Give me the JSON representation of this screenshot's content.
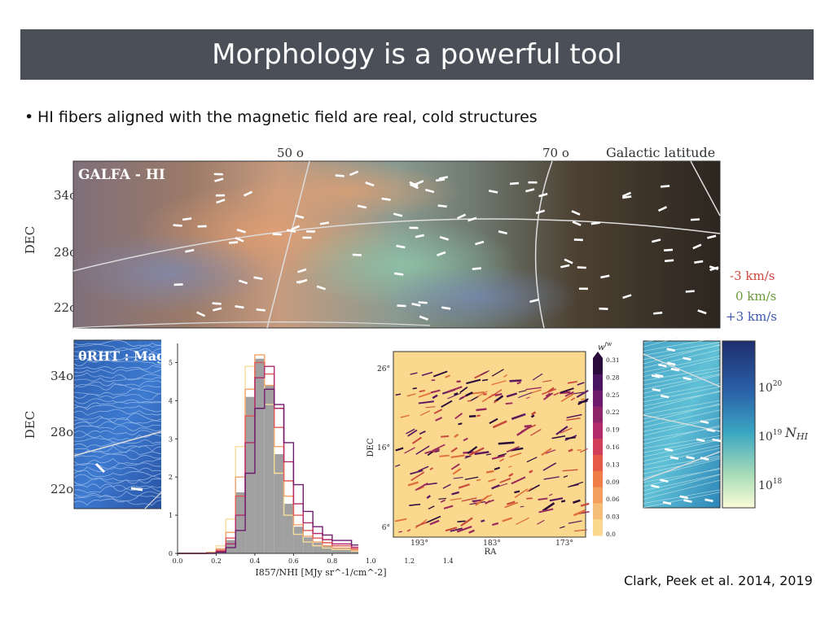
{
  "slide": {
    "title": "Morphology is a powerful tool",
    "bullet": "HI fibers aligned with the magnetic field are real, cold structures",
    "citation": "Clark, Peek et al. 2014, 2019"
  },
  "top_map": {
    "label": "GALFA - HI",
    "gal_lat_label": "Galactic latitude",
    "gal_lat_ticks": [
      "50 o",
      "70 o"
    ],
    "dec_label": "DEC",
    "dec_ticks": [
      "34o",
      "28o",
      "22o"
    ],
    "velocity_legend": [
      {
        "text": "-3 km/s",
        "color": "#d0463c"
      },
      {
        "text": "0 km/s",
        "color": "#6a9a3a"
      },
      {
        "text": "+3 km/s",
        "color": "#3b56b0"
      }
    ]
  },
  "left_map": {
    "label": "θRHT : Magne",
    "dec_label": "DEC",
    "dec_ticks": [
      "34o",
      "28o",
      "22o"
    ]
  },
  "right_map": {
    "colorbar_label": "NHI",
    "colorbar_ticks": [
      "10^20",
      "10^19",
      "10^18"
    ]
  },
  "histogram": {
    "xlabel": "I857/NHI [MJy sr^-1/cm^-2]",
    "xticks": [
      "0.0",
      "0.2",
      "0.4",
      "0.6",
      "0.8",
      "1.0",
      "1.2",
      "1.4"
    ],
    "yticks": [
      "0",
      "1",
      "2",
      "3",
      "4",
      "5"
    ]
  },
  "fiber_map": {
    "xlabel": "RA",
    "ylabel": "DEC",
    "xticks": [
      "193°",
      "183°",
      "173°"
    ],
    "yticks": [
      "26°",
      "16°",
      "6°"
    ],
    "colorbar_label": "w^fw",
    "colorbar_ticks": [
      "0.31",
      "0.28",
      "0.25",
      "0.22",
      "0.19",
      "0.16",
      "0.13",
      "0.09",
      "0.06",
      "0.03",
      "0.0"
    ]
  },
  "chart_data": [
    {
      "type": "histogram",
      "xlabel": "I857/NHI [MJy sr^-1/cm^-2]",
      "xlim": [
        0.0,
        1.5
      ],
      "ylim": [
        0,
        5.5
      ],
      "x": [
        0.0,
        0.05,
        0.1,
        0.15,
        0.2,
        0.25,
        0.3,
        0.35,
        0.4,
        0.45,
        0.5,
        0.55,
        0.6,
        0.65,
        0.7,
        0.75,
        0.8,
        0.9,
        1.0,
        1.1,
        1.2,
        1.3,
        1.4,
        1.5
      ],
      "series": [
        {
          "color": "#a0a0a0",
          "values": [
            0,
            0,
            0,
            0.02,
            0.1,
            0.35,
            1.6,
            4.1,
            5.1,
            4.4,
            2.6,
            1.3,
            0.7,
            0.42,
            0.28,
            0.2,
            0.15,
            0.1,
            0.06,
            0.03,
            0.01,
            0,
            0,
            0
          ]
        },
        {
          "color": "#f5dd9a",
          "values": [
            0,
            0,
            0,
            0.03,
            0.2,
            0.9,
            2.8,
            4.9,
            5.2,
            3.9,
            2.1,
            1.0,
            0.5,
            0.3,
            0.2,
            0.14,
            0.1,
            0.06,
            0.03,
            0.01,
            0,
            0,
            0,
            0
          ]
        },
        {
          "color": "#f2a36b",
          "values": [
            0,
            0,
            0,
            0.02,
            0.12,
            0.55,
            2.0,
            4.3,
            5.2,
            4.4,
            2.8,
            1.5,
            0.75,
            0.45,
            0.3,
            0.2,
            0.14,
            0.08,
            0.04,
            0.02,
            0.01,
            0,
            0,
            0
          ]
        },
        {
          "color": "#e05a55",
          "values": [
            0,
            0,
            0,
            0.01,
            0.08,
            0.4,
            1.5,
            3.6,
            5.0,
            4.7,
            3.3,
            1.9,
            1.0,
            0.6,
            0.4,
            0.28,
            0.2,
            0.12,
            0.06,
            0.03,
            0.01,
            0,
            0,
            0
          ]
        },
        {
          "color": "#b32a6a",
          "values": [
            0,
            0,
            0,
            0.01,
            0.05,
            0.25,
            1.0,
            2.9,
            4.6,
            4.9,
            3.8,
            2.4,
            1.3,
            0.8,
            0.52,
            0.36,
            0.25,
            0.16,
            0.09,
            0.04,
            0.02,
            0.01,
            0,
            0
          ]
        },
        {
          "color": "#6e1b6e",
          "values": [
            0,
            0,
            0,
            0,
            0.03,
            0.15,
            0.6,
            2.1,
            3.8,
            4.3,
            3.9,
            2.9,
            1.8,
            1.1,
            0.7,
            0.48,
            0.34,
            0.22,
            0.13,
            0.07,
            0.04,
            0.02,
            0.01,
            0
          ]
        }
      ]
    },
    {
      "type": "heatmap",
      "xlabel": "RA",
      "ylabel": "DEC",
      "x_ticks": [
        "193°",
        "183°",
        "173°"
      ],
      "y_ticks": [
        "26°",
        "16°",
        "6°"
      ],
      "colorbar_range": [
        0.0,
        0.31
      ]
    }
  ]
}
